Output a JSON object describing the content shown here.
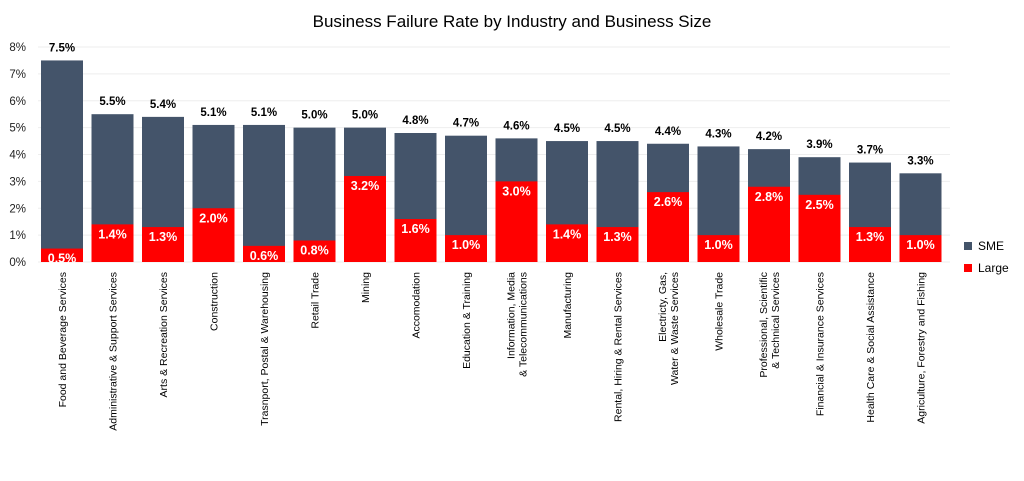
{
  "chart_data": {
    "type": "bar",
    "title": "Business Failure Rate by Industry and Business Size",
    "categories": [
      "Food and Beverage Services",
      "Administrative & Support Services",
      "Arts & Recreation Services",
      "Construction",
      "Trasnport, Postal & Warehousing",
      "Retail Trade",
      "Mining",
      "Accomodation",
      "Education & Training",
      "Information, Media & Telecommunications",
      "Manufacturing",
      "Rental, Hiring & Rental Services",
      "Electricty, Gas, Water & Waste Services",
      "Wholesale Trade",
      "Professional, Scientific & Technical Services",
      "Financial & Insurance Services",
      "Health Care & Social Assistance",
      "Agriculture, Forestry and Fishing"
    ],
    "series": [
      {
        "name": "SME",
        "color": "#44546a",
        "values": [
          7.5,
          5.5,
          5.4,
          5.1,
          5.1,
          5.0,
          5.0,
          4.8,
          4.7,
          4.6,
          4.5,
          4.5,
          4.4,
          4.3,
          4.2,
          3.9,
          3.7,
          3.3
        ],
        "labels": [
          "7.5%",
          "5.5%",
          "5.4%",
          "5.1%",
          "5.1%",
          "5.0%",
          "5.0%",
          "4.8%",
          "4.7%",
          "4.6%",
          "4.5%",
          "4.5%",
          "4.4%",
          "4.3%",
          "4.2%",
          "3.9%",
          "3.7%",
          "3.3%"
        ]
      },
      {
        "name": "Large",
        "color": "#ff0000",
        "values": [
          0.5,
          1.4,
          1.3,
          2.0,
          0.6,
          0.8,
          3.2,
          1.6,
          1.0,
          3.0,
          1.4,
          1.3,
          2.6,
          1.0,
          2.8,
          2.5,
          1.3,
          1.0
        ],
        "labels": [
          "0.5%",
          "1.4%",
          "1.3%",
          "2.0%",
          "0.6%",
          "0.8%",
          "3.2%",
          "1.6%",
          "1.0%",
          "3.0%",
          "1.4%",
          "1.3%",
          "2.6%",
          "1.0%",
          "2.8%",
          "2.5%",
          "1.3%",
          "1.0%"
        ]
      }
    ],
    "y_ticks": [
      "0%",
      "1%",
      "2%",
      "3%",
      "4%",
      "5%",
      "6%",
      "7%",
      "8%"
    ],
    "ylim": [
      0,
      8
    ],
    "grid": true,
    "legend": "right"
  }
}
